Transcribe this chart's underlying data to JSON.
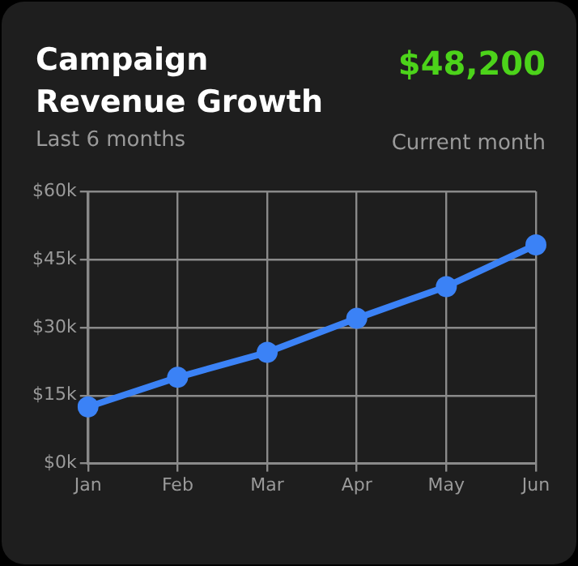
{
  "chart_data": {
    "type": "line",
    "title": "Campaign Revenue Growth",
    "subtitle": "Last 6 months",
    "annotations": [
      "$48,200",
      "Current month"
    ],
    "categories": [
      "Jan",
      "Feb",
      "Mar",
      "Apr",
      "May",
      "Jun"
    ],
    "series": [
      {
        "color": "#3b82f6",
        "values": [
          12.5,
          19,
          24.5,
          32,
          39,
          48.2
        ]
      }
    ],
    "ylim": [
      0,
      60
    ],
    "yticks": [
      {
        "value": 0,
        "label": "$0k"
      },
      {
        "value": 15,
        "label": "$15k"
      },
      {
        "value": 30,
        "label": "$30k"
      },
      {
        "value": 45,
        "label": "$45k"
      },
      {
        "value": 60,
        "label": "$60k"
      }
    ],
    "grid": true,
    "legend": false,
    "marker": "circle",
    "line_style": "solid"
  }
}
